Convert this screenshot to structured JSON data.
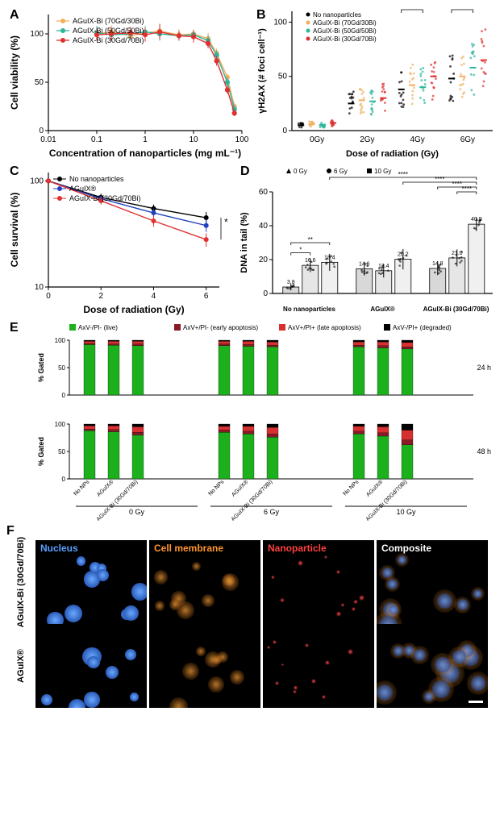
{
  "labels": {
    "A": "A",
    "B": "B",
    "C": "C",
    "D": "D",
    "E": "E",
    "F": "F"
  },
  "panelA": {
    "type": "line-scatter-log-x",
    "xlabel": "Concentration of nanoparticles (mg mL⁻¹)",
    "ylabel": "Cell viability (%)",
    "xlim": [
      0.01,
      100
    ],
    "xticks": [
      0.01,
      0.1,
      1,
      10,
      100
    ],
    "xticklabels": [
      "0.01",
      "0.1",
      "1",
      "10",
      "100"
    ],
    "ylim": [
      0,
      120
    ],
    "yticks": [
      0,
      50,
      100
    ],
    "yticklabels": [
      "0",
      "50",
      "100"
    ],
    "legend": [
      {
        "label": "AGuIX-Bi (70Gd/30Bi)",
        "color": "#f0b060"
      },
      {
        "label": "AGuIX-Bi (50Gd/50Bi)",
        "color": "#2bb59a"
      },
      {
        "label": "AGuIX-Bi (30Gd/70Bi)",
        "color": "#e03030"
      }
    ],
    "series": [
      {
        "color": "#f0b060",
        "x": [
          0.1,
          0.2,
          0.5,
          1,
          2,
          5,
          10,
          20,
          30,
          50,
          70
        ],
        "y": [
          100,
          102,
          98,
          101,
          103,
          99,
          100,
          95,
          80,
          55,
          25
        ],
        "err": [
          6,
          7,
          5,
          6,
          8,
          6,
          5,
          6,
          5,
          4,
          4
        ]
      },
      {
        "color": "#2bb59a",
        "x": [
          0.1,
          0.2,
          0.5,
          1,
          2,
          5,
          10,
          20,
          30,
          50,
          70
        ],
        "y": [
          101,
          99,
          100,
          102,
          100,
          98,
          99,
          93,
          78,
          50,
          22
        ],
        "err": [
          7,
          6,
          7,
          6,
          7,
          5,
          5,
          6,
          5,
          5,
          4
        ]
      },
      {
        "color": "#e03030",
        "x": [
          0.1,
          0.2,
          0.5,
          1,
          2,
          5,
          10,
          20,
          30,
          50,
          70
        ],
        "y": [
          99,
          100,
          101,
          99,
          102,
          98,
          97,
          90,
          72,
          42,
          18
        ],
        "err": [
          6,
          7,
          6,
          7,
          8,
          5,
          6,
          5,
          5,
          4,
          3
        ]
      }
    ],
    "title_fontsize": 11,
    "label_fontsize": 12
  },
  "panelB": {
    "type": "grouped-scatter-median",
    "xlabel": "Dose of radiation (Gy)",
    "ylabel": "γH2AX (# foci cell⁻¹)",
    "groups": [
      "0Gy",
      "2Gy",
      "4Gy",
      "6Gy"
    ],
    "ylim": [
      0,
      110
    ],
    "yticks": [
      0,
      50,
      100
    ],
    "yticklabels": [
      "0",
      "50",
      "100"
    ],
    "legend": [
      {
        "label": "No nanoparticles",
        "color": "#000000"
      },
      {
        "label": "AGuIX-Bi (70Gd/30Bi)",
        "color": "#f0b060"
      },
      {
        "label": "AGuIX-Bi (50Gd/50Bi)",
        "color": "#2bb59a"
      },
      {
        "label": "AGuIX-Bi (30Gd/70Bi)",
        "color": "#e03030"
      }
    ],
    "medians": {
      "0Gy": [
        5,
        6,
        5,
        7
      ],
      "2Gy": [
        25,
        28,
        27,
        30
      ],
      "4Gy": [
        38,
        42,
        40,
        50
      ],
      "6Gy": [
        48,
        50,
        58,
        65
      ]
    },
    "sig": [
      {
        "group": "4Gy",
        "pairs": [
          [
            0,
            2,
            "**"
          ],
          [
            0,
            3,
            "***"
          ],
          [
            1,
            3,
            "***"
          ]
        ]
      },
      {
        "group": "6Gy",
        "pairs": [
          [
            0,
            2,
            "***"
          ],
          [
            0,
            3,
            "***"
          ],
          [
            1,
            3,
            "**"
          ],
          [
            2,
            3,
            "*"
          ]
        ]
      }
    ],
    "label_fontsize": 11
  },
  "panelC": {
    "type": "line-scatter-log-y",
    "xlabel": "Dose of radiation (Gy)",
    "ylabel": "Cell survival (%)",
    "xlim": [
      0,
      6.5
    ],
    "xticks": [
      0,
      2,
      4,
      6
    ],
    "xticklabels": [
      "0",
      "2",
      "4",
      "6"
    ],
    "ylim": [
      10,
      120
    ],
    "yticks": [
      10,
      100
    ],
    "yticklabels": [
      "10",
      "100"
    ],
    "legend": [
      {
        "label": "No nanoparticles",
        "color": "#000000"
      },
      {
        "label": "AGuIX®",
        "color": "#2040c0"
      },
      {
        "label": "AGuIX-Bi (30Gd/70Bi)",
        "color": "#e03030"
      }
    ],
    "series": [
      {
        "color": "#000000",
        "x": [
          0,
          2,
          4,
          6
        ],
        "y": [
          100,
          70,
          55,
          45
        ],
        "err": [
          0,
          6,
          5,
          6
        ]
      },
      {
        "color": "#2040c0",
        "x": [
          0,
          2,
          4,
          6
        ],
        "y": [
          100,
          68,
          50,
          38
        ],
        "err": [
          0,
          5,
          5,
          5
        ]
      },
      {
        "color": "#e03030",
        "x": [
          0,
          2,
          4,
          6
        ],
        "y": [
          100,
          65,
          42,
          28
        ],
        "err": [
          0,
          5,
          5,
          4
        ]
      }
    ],
    "sig_right": "*",
    "label_fontsize": 12
  },
  "panelD": {
    "type": "bar-grouped",
    "ylabel": "DNA in tail (%)",
    "ylim": [
      0,
      60
    ],
    "yticks": [
      0,
      20,
      40,
      60
    ],
    "yticklabels": [
      "0",
      "20",
      "40",
      "60"
    ],
    "groups": [
      "No nanoparticles",
      "AGuIX®",
      "AGuIX-Bi (30Gd/70Bi)"
    ],
    "sub_legend": [
      {
        "label": "0 Gy",
        "marker": "triangle"
      },
      {
        "label": "6 Gy",
        "marker": "circle"
      },
      {
        "label": "10 Gy",
        "marker": "square"
      }
    ],
    "bar_fill": "#d8d8d8",
    "bar_fill_mid": "#e6e6e6",
    "bar_fill_light": "#f0f0f0",
    "bar_edge": "#000000",
    "values": [
      [
        3.8,
        16.6,
        18.4
      ],
      [
        14.6,
        13.4,
        20.2
      ],
      [
        14.8,
        21.0,
        40.9
      ]
    ],
    "value_labels": [
      [
        "3.8",
        "16.6",
        "18.4"
      ],
      [
        "14.6",
        "13.4",
        "20.2"
      ],
      [
        "14.8",
        "21.0",
        "40.9"
      ]
    ],
    "err": [
      [
        2,
        4,
        5
      ],
      [
        4,
        4,
        6
      ],
      [
        4,
        5,
        4
      ]
    ],
    "sig_within": [
      {
        "group": 0,
        "pairs": [
          [
            0,
            1,
            "*"
          ],
          [
            0,
            2,
            "**"
          ]
        ]
      }
    ],
    "sig_between_top": [
      "****",
      "****",
      "****",
      "****"
    ],
    "label_fontsize": 11
  },
  "panelE": {
    "type": "stacked-bar",
    "ylabel": "% Gated",
    "ylim": [
      0,
      100
    ],
    "yticks": [
      0,
      50,
      100
    ],
    "yticklabels": [
      "0",
      "50",
      "100"
    ],
    "legend": [
      {
        "label": "AxV-/PI- (live)",
        "color": "#1cb01c"
      },
      {
        "label": "AxV+/PI- (early apoptosis)",
        "color": "#8a1a28"
      },
      {
        "label": "AxV+/PI+ (late apoptosis)",
        "color": "#d83030"
      },
      {
        "label": "AxV-/PI+ (degraded)",
        "color": "#000000"
      }
    ],
    "x_groups": [
      "0 Gy",
      "6 Gy",
      "10 Gy"
    ],
    "x_sub": [
      "No NPs",
      "AGuIX®",
      "AGuIX-Bi (30Gd/70Bi)"
    ],
    "rows": [
      {
        "time": "24 h",
        "data": [
          [
            [
              92,
              2,
              4,
              2
            ],
            [
              91,
              2,
              5,
              2
            ],
            [
              90,
              3,
              5,
              2
            ]
          ],
          [
            [
              90,
              3,
              5,
              2
            ],
            [
              89,
              3,
              6,
              2
            ],
            [
              88,
              3,
              6,
              3
            ]
          ],
          [
            [
              88,
              3,
              6,
              3
            ],
            [
              86,
              4,
              7,
              3
            ],
            [
              84,
              4,
              8,
              4
            ]
          ]
        ]
      },
      {
        "time": "48 h",
        "data": [
          [
            [
              88,
              3,
              6,
              3
            ],
            [
              86,
              4,
              7,
              3
            ],
            [
              80,
              5,
              10,
              5
            ]
          ],
          [
            [
              85,
              4,
              7,
              4
            ],
            [
              82,
              5,
              9,
              4
            ],
            [
              76,
              6,
              12,
              6
            ]
          ],
          [
            [
              82,
              5,
              9,
              4
            ],
            [
              78,
              6,
              11,
              5
            ],
            [
              62,
              9,
              18,
              11
            ]
          ]
        ]
      }
    ],
    "label_fontsize": 10
  },
  "panelF": {
    "col_headers": [
      {
        "text": "Nucleus",
        "color": "#5aa0ff"
      },
      {
        "text": "Cell membrane",
        "color": "#ff9530"
      },
      {
        "text": "Nanoparticle",
        "color": "#ff4040"
      },
      {
        "text": "Composite",
        "color": "#ffffff"
      }
    ],
    "row_headers": [
      "AGuIX-Bi\n(30Gd/70Bi)",
      "AGuIX®"
    ]
  }
}
